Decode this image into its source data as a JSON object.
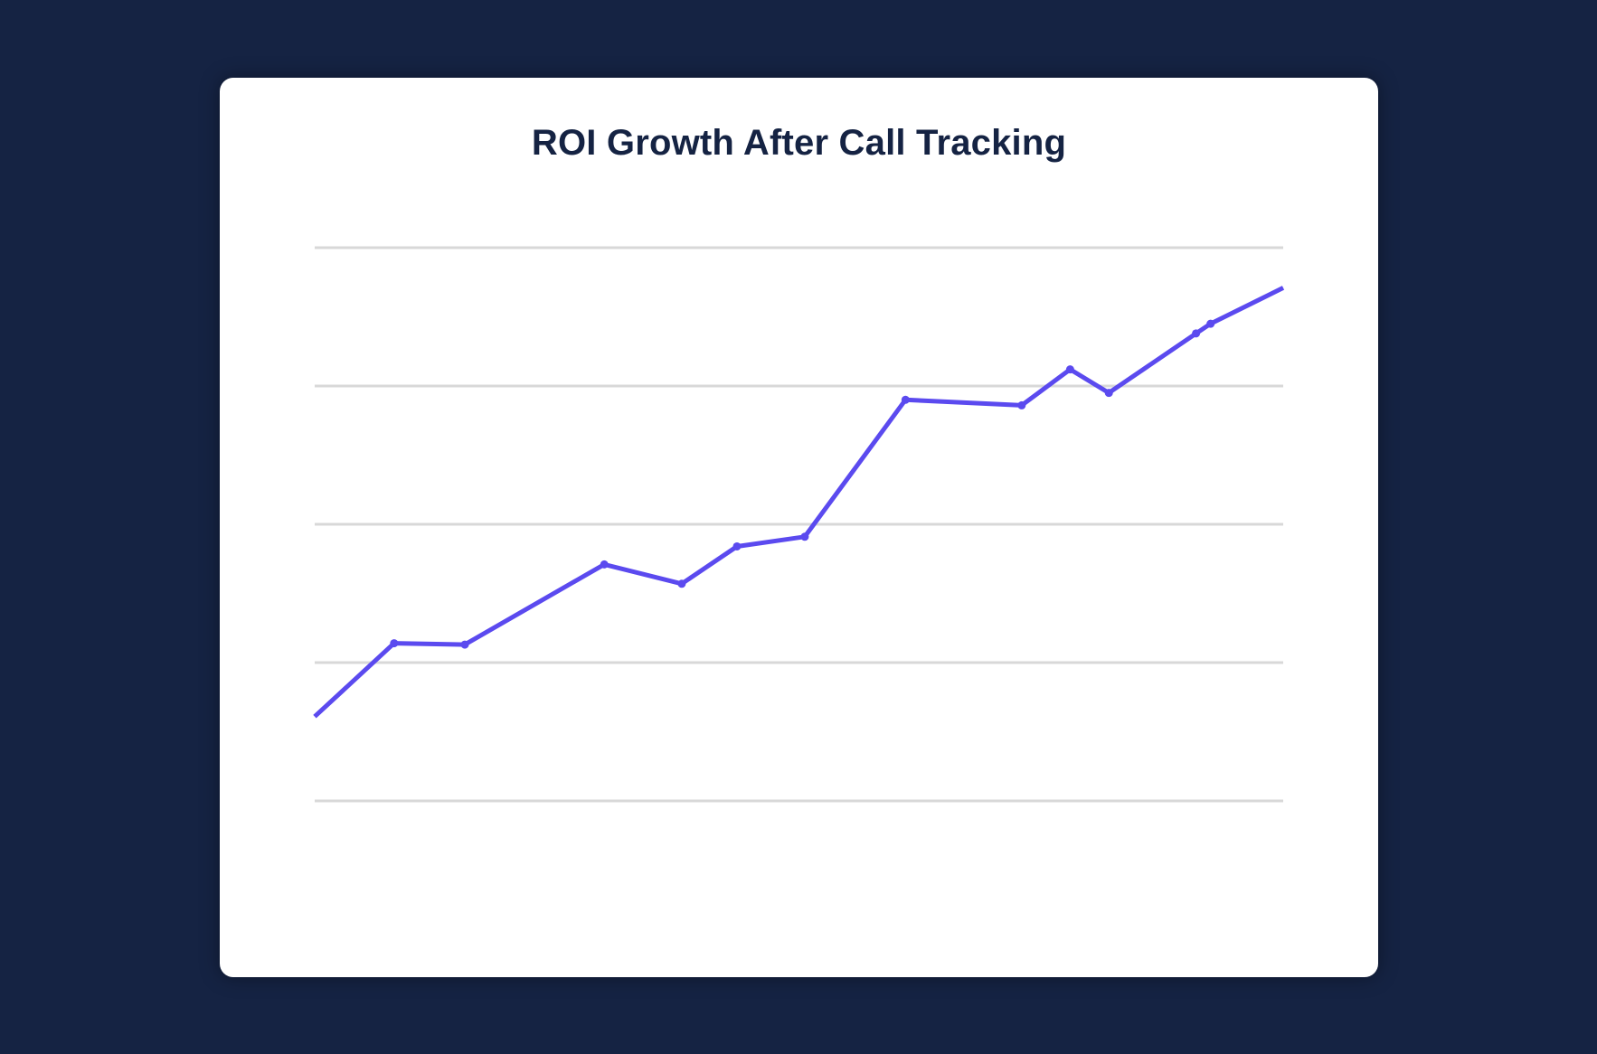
{
  "colors": {
    "background": "#152343",
    "card": "#ffffff",
    "title": "#152343",
    "line": "#5b4aef",
    "gridline": "#d8d8d8"
  },
  "chart_data": {
    "type": "line",
    "title": "ROI Growth After Call Tracking",
    "xlabel": "",
    "ylabel": "",
    "ylim": [
      0,
      4
    ],
    "xlim": [
      0,
      100
    ],
    "grid": true,
    "gridline_values": [
      0,
      1,
      2,
      3,
      4
    ],
    "x_ticks": [],
    "y_ticks": [],
    "legend": "none",
    "series": [
      {
        "color": "#5b4aef",
        "markers": true,
        "points": [
          {
            "x": 0,
            "y": 0.61
          },
          {
            "x": 8.2,
            "y": 1.14
          },
          {
            "x": 15.5,
            "y": 1.13
          },
          {
            "x": 29.9,
            "y": 1.71
          },
          {
            "x": 37.9,
            "y": 1.57
          },
          {
            "x": 43.6,
            "y": 1.84
          },
          {
            "x": 50.6,
            "y": 1.91
          },
          {
            "x": 61.0,
            "y": 2.9
          },
          {
            "x": 73.0,
            "y": 2.86
          },
          {
            "x": 78.0,
            "y": 3.12
          },
          {
            "x": 82.0,
            "y": 2.95
          },
          {
            "x": 91.0,
            "y": 3.38
          },
          {
            "x": 92.5,
            "y": 3.45
          },
          {
            "x": 100,
            "y": 3.71
          }
        ]
      }
    ]
  }
}
